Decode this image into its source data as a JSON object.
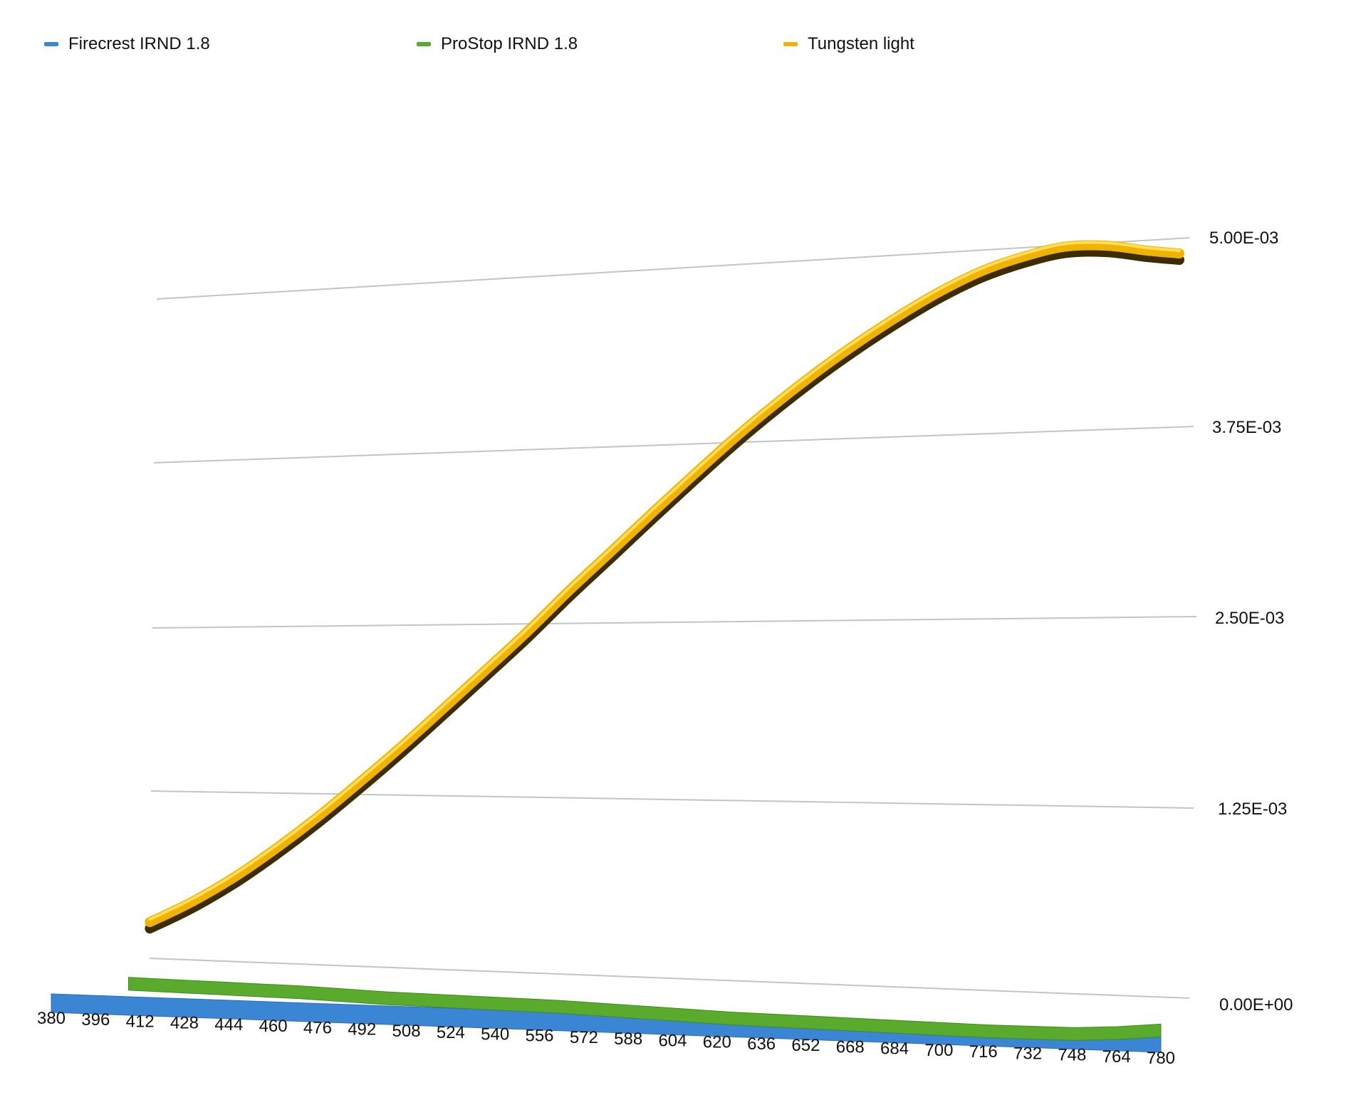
{
  "colors": {
    "firecrest": "#3a86d4",
    "prostop": "#5aaa2e",
    "tungsten": "#f0b400",
    "grid": "#c4c4c4"
  },
  "legend": [
    {
      "label": "Firecrest IRND 1.8",
      "color": "#3a86d4"
    },
    {
      "label": "ProStop IRND 1.8",
      "color": "#5aaa2e"
    },
    {
      "label": "Tungsten light",
      "color": "#f0b400"
    }
  ],
  "chart_data": {
    "type": "line",
    "style": "3d-ribbon",
    "grid": true,
    "legend_position": "top",
    "x_tick_labels": [
      "380",
      "396",
      "412",
      "428",
      "444",
      "460",
      "476",
      "492",
      "508",
      "524",
      "540",
      "556",
      "572",
      "588",
      "604",
      "620",
      "636",
      "652",
      "668",
      "684",
      "700",
      "716",
      "732",
      "748",
      "764",
      "780"
    ],
    "y_tick_labels": [
      "0.00E+00",
      "1.25E-03",
      "2.50E-03",
      "3.75E-03",
      "5.00E-03"
    ],
    "y_ticks": [
      0,
      0.00125,
      0.0025,
      0.00375,
      0.005
    ],
    "ylim": [
      0,
      0.005
    ],
    "xlim": [
      380,
      780
    ],
    "series": [
      {
        "name": "Tungsten light",
        "x": [
          380,
          396,
          412,
          428,
          444,
          460,
          476,
          492,
          508,
          524,
          540,
          556,
          572,
          588,
          604,
          620,
          636,
          652,
          668,
          684,
          700,
          716,
          732,
          748,
          764,
          776
        ],
        "values": [
          0.00027,
          0.00043,
          0.00062,
          0.00084,
          0.00108,
          0.00134,
          0.00161,
          0.00189,
          0.00217,
          0.00245,
          0.00274,
          0.00301,
          0.00328,
          0.00354,
          0.00379,
          0.00402,
          0.00423,
          0.00442,
          0.00459,
          0.00474,
          0.00486,
          0.00494,
          0.00499,
          0.00498,
          0.00493,
          0.0049
        ]
      },
      {
        "name": "ProStop IRND 1.8",
        "x": [
          396,
          428,
          460,
          492,
          524,
          556,
          588,
          620,
          652,
          684,
          716,
          748,
          764,
          780
        ],
        "values": [
          5e-05,
          5e-05,
          5e-05,
          4e-05,
          4e-05,
          4e-05,
          3e-05,
          2e-05,
          2e-05,
          2e-05,
          2e-05,
          3e-05,
          5e-05,
          8e-05
        ]
      },
      {
        "name": "Firecrest IRND 1.8",
        "x": [
          380,
          780
        ],
        "values": [
          3e-06,
          3e-06
        ]
      }
    ]
  }
}
